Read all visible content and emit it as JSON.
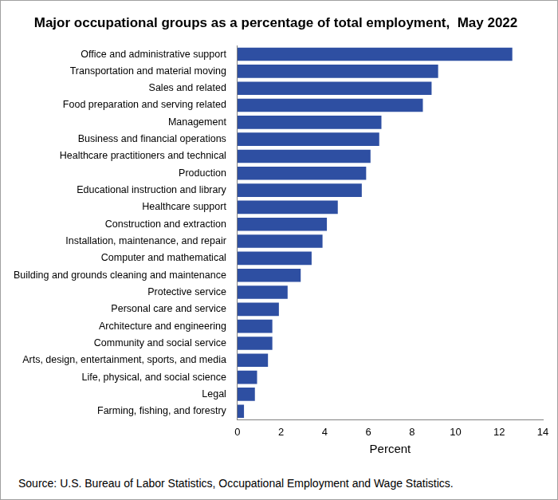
{
  "chart_data": {
    "type": "bar",
    "orientation": "horizontal",
    "title": "Major occupational groups as a percentage of total employment,  May 2022",
    "xlabel": "Percent",
    "source": "Source: U.S. Bureau of Labor Statistics, Occupational Employment  and Wage Statistics.",
    "categories": [
      "Office and administrative support",
      "Transportation and material moving",
      "Sales and related",
      "Food preparation and serving related",
      "Management",
      "Business and financial operations",
      "Healthcare practitioners and technical",
      "Production",
      "Educational instruction and library",
      "Healthcare support",
      "Construction and extraction",
      "Installation, maintenance, and repair",
      "Computer and mathematical",
      "Building and grounds cleaning and maintenance",
      "Protective service",
      "Personal care and service",
      "Architecture and engineering",
      "Community and social service",
      "Arts, design, entertainment, sports, and media",
      "Life, physical, and social science",
      "Legal",
      "Farming, fishing, and forestry"
    ],
    "values": [
      12.6,
      9.2,
      8.9,
      8.5,
      6.6,
      6.5,
      6.1,
      5.9,
      5.7,
      4.6,
      4.1,
      3.9,
      3.4,
      2.9,
      2.3,
      1.9,
      1.6,
      1.6,
      1.4,
      0.9,
      0.8,
      0.3
    ],
    "color": "#2e4fa2",
    "xlim": [
      0,
      14
    ],
    "xticks": [
      0,
      2,
      4,
      6,
      8,
      10,
      12,
      14
    ],
    "grid": false
  }
}
